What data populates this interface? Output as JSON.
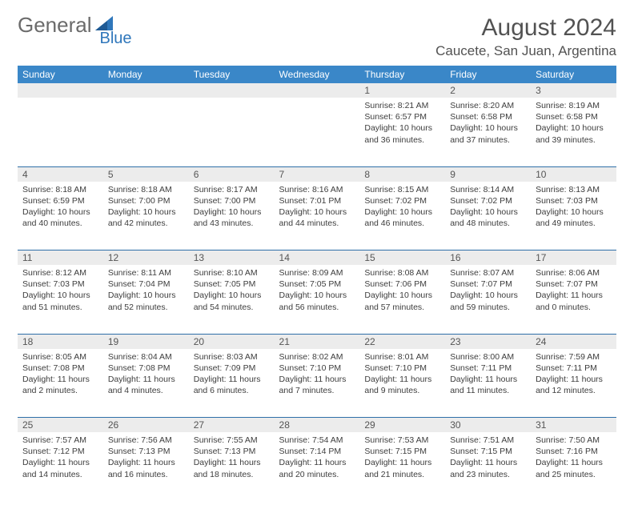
{
  "brand": {
    "word1": "General",
    "word2": "Blue"
  },
  "title": "August 2024",
  "location": "Caucete, San Juan, Argentina",
  "colors": {
    "header_bg": "#3a87c8",
    "header_text": "#ffffff",
    "daynum_bg": "#ececec",
    "rule": "#2f6fa8",
    "brand_gray": "#6b6b6b",
    "brand_blue": "#2f77bb",
    "title_color": "#525252"
  },
  "weekdays": [
    "Sunday",
    "Monday",
    "Tuesday",
    "Wednesday",
    "Thursday",
    "Friday",
    "Saturday"
  ],
  "weeks": [
    {
      "nums": [
        "",
        "",
        "",
        "",
        "1",
        "2",
        "3"
      ],
      "cells": [
        {},
        {},
        {},
        {},
        {
          "sunrise": "Sunrise: 8:21 AM",
          "sunset": "Sunset: 6:57 PM",
          "day": "Daylight: 10 hours and 36 minutes."
        },
        {
          "sunrise": "Sunrise: 8:20 AM",
          "sunset": "Sunset: 6:58 PM",
          "day": "Daylight: 10 hours and 37 minutes."
        },
        {
          "sunrise": "Sunrise: 8:19 AM",
          "sunset": "Sunset: 6:58 PM",
          "day": "Daylight: 10 hours and 39 minutes."
        }
      ]
    },
    {
      "nums": [
        "4",
        "5",
        "6",
        "7",
        "8",
        "9",
        "10"
      ],
      "cells": [
        {
          "sunrise": "Sunrise: 8:18 AM",
          "sunset": "Sunset: 6:59 PM",
          "day": "Daylight: 10 hours and 40 minutes."
        },
        {
          "sunrise": "Sunrise: 8:18 AM",
          "sunset": "Sunset: 7:00 PM",
          "day": "Daylight: 10 hours and 42 minutes."
        },
        {
          "sunrise": "Sunrise: 8:17 AM",
          "sunset": "Sunset: 7:00 PM",
          "day": "Daylight: 10 hours and 43 minutes."
        },
        {
          "sunrise": "Sunrise: 8:16 AM",
          "sunset": "Sunset: 7:01 PM",
          "day": "Daylight: 10 hours and 44 minutes."
        },
        {
          "sunrise": "Sunrise: 8:15 AM",
          "sunset": "Sunset: 7:02 PM",
          "day": "Daylight: 10 hours and 46 minutes."
        },
        {
          "sunrise": "Sunrise: 8:14 AM",
          "sunset": "Sunset: 7:02 PM",
          "day": "Daylight: 10 hours and 48 minutes."
        },
        {
          "sunrise": "Sunrise: 8:13 AM",
          "sunset": "Sunset: 7:03 PM",
          "day": "Daylight: 10 hours and 49 minutes."
        }
      ]
    },
    {
      "nums": [
        "11",
        "12",
        "13",
        "14",
        "15",
        "16",
        "17"
      ],
      "cells": [
        {
          "sunrise": "Sunrise: 8:12 AM",
          "sunset": "Sunset: 7:03 PM",
          "day": "Daylight: 10 hours and 51 minutes."
        },
        {
          "sunrise": "Sunrise: 8:11 AM",
          "sunset": "Sunset: 7:04 PM",
          "day": "Daylight: 10 hours and 52 minutes."
        },
        {
          "sunrise": "Sunrise: 8:10 AM",
          "sunset": "Sunset: 7:05 PM",
          "day": "Daylight: 10 hours and 54 minutes."
        },
        {
          "sunrise": "Sunrise: 8:09 AM",
          "sunset": "Sunset: 7:05 PM",
          "day": "Daylight: 10 hours and 56 minutes."
        },
        {
          "sunrise": "Sunrise: 8:08 AM",
          "sunset": "Sunset: 7:06 PM",
          "day": "Daylight: 10 hours and 57 minutes."
        },
        {
          "sunrise": "Sunrise: 8:07 AM",
          "sunset": "Sunset: 7:07 PM",
          "day": "Daylight: 10 hours and 59 minutes."
        },
        {
          "sunrise": "Sunrise: 8:06 AM",
          "sunset": "Sunset: 7:07 PM",
          "day": "Daylight: 11 hours and 0 minutes."
        }
      ]
    },
    {
      "nums": [
        "18",
        "19",
        "20",
        "21",
        "22",
        "23",
        "24"
      ],
      "cells": [
        {
          "sunrise": "Sunrise: 8:05 AM",
          "sunset": "Sunset: 7:08 PM",
          "day": "Daylight: 11 hours and 2 minutes."
        },
        {
          "sunrise": "Sunrise: 8:04 AM",
          "sunset": "Sunset: 7:08 PM",
          "day": "Daylight: 11 hours and 4 minutes."
        },
        {
          "sunrise": "Sunrise: 8:03 AM",
          "sunset": "Sunset: 7:09 PM",
          "day": "Daylight: 11 hours and 6 minutes."
        },
        {
          "sunrise": "Sunrise: 8:02 AM",
          "sunset": "Sunset: 7:10 PM",
          "day": "Daylight: 11 hours and 7 minutes."
        },
        {
          "sunrise": "Sunrise: 8:01 AM",
          "sunset": "Sunset: 7:10 PM",
          "day": "Daylight: 11 hours and 9 minutes."
        },
        {
          "sunrise": "Sunrise: 8:00 AM",
          "sunset": "Sunset: 7:11 PM",
          "day": "Daylight: 11 hours and 11 minutes."
        },
        {
          "sunrise": "Sunrise: 7:59 AM",
          "sunset": "Sunset: 7:11 PM",
          "day": "Daylight: 11 hours and 12 minutes."
        }
      ]
    },
    {
      "nums": [
        "25",
        "26",
        "27",
        "28",
        "29",
        "30",
        "31"
      ],
      "cells": [
        {
          "sunrise": "Sunrise: 7:57 AM",
          "sunset": "Sunset: 7:12 PM",
          "day": "Daylight: 11 hours and 14 minutes."
        },
        {
          "sunrise": "Sunrise: 7:56 AM",
          "sunset": "Sunset: 7:13 PM",
          "day": "Daylight: 11 hours and 16 minutes."
        },
        {
          "sunrise": "Sunrise: 7:55 AM",
          "sunset": "Sunset: 7:13 PM",
          "day": "Daylight: 11 hours and 18 minutes."
        },
        {
          "sunrise": "Sunrise: 7:54 AM",
          "sunset": "Sunset: 7:14 PM",
          "day": "Daylight: 11 hours and 20 minutes."
        },
        {
          "sunrise": "Sunrise: 7:53 AM",
          "sunset": "Sunset: 7:15 PM",
          "day": "Daylight: 11 hours and 21 minutes."
        },
        {
          "sunrise": "Sunrise: 7:51 AM",
          "sunset": "Sunset: 7:15 PM",
          "day": "Daylight: 11 hours and 23 minutes."
        },
        {
          "sunrise": "Sunrise: 7:50 AM",
          "sunset": "Sunset: 7:16 PM",
          "day": "Daylight: 11 hours and 25 minutes."
        }
      ]
    }
  ]
}
